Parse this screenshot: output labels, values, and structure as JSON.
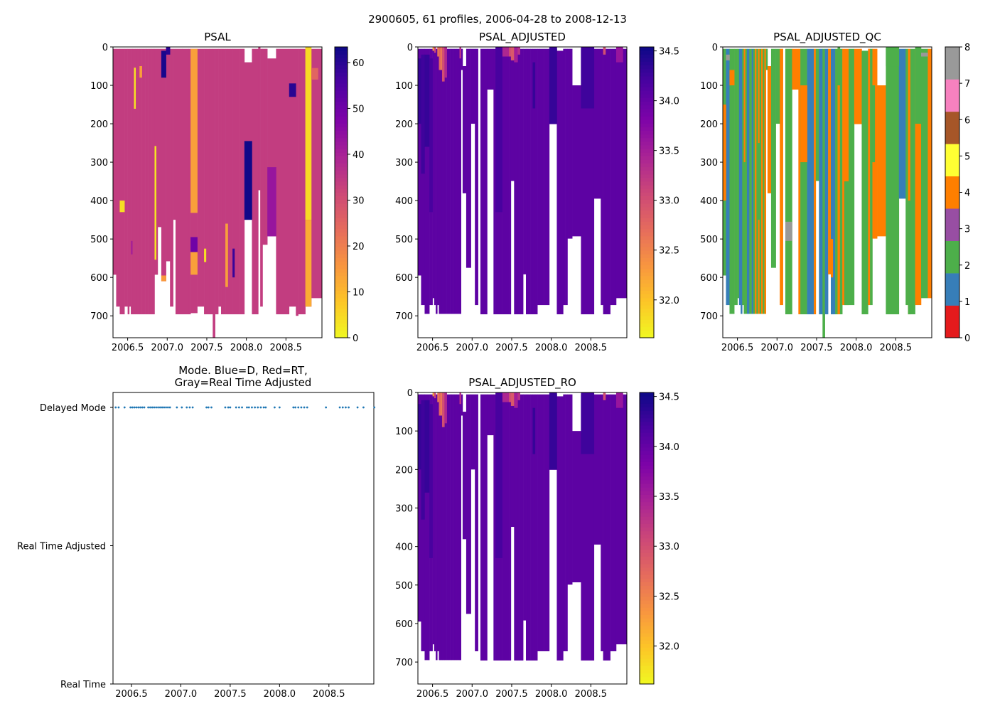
{
  "chart_data": {
    "suptitle": "2900605, 61 profiles, 2006-04-28 to 2008-12-13",
    "profile_dates": [
      2006.34,
      2006.37,
      2006.43,
      2006.49,
      2006.51,
      2006.53,
      2006.55,
      2006.57,
      2006.59,
      2006.61,
      2006.63,
      2006.67,
      2006.69,
      2006.71,
      2006.73,
      2006.75,
      2006.77,
      2006.79,
      2006.81,
      2006.83,
      2006.85,
      2006.87,
      2006.89,
      2006.96,
      2007.01,
      2007.06,
      2007.09,
      2007.12,
      2007.26,
      2007.28,
      2007.31,
      2007.45,
      2007.48,
      2007.5,
      2007.56,
      2007.59,
      2007.62,
      2007.67,
      2007.69,
      2007.72,
      2007.75,
      2007.78,
      2007.81,
      2007.84,
      2007.86,
      2007.95,
      2008.0,
      2008.14,
      2008.16,
      2008.19,
      2008.22,
      2008.25,
      2008.28,
      2008.47,
      2008.61,
      2008.64,
      2008.67,
      2008.7,
      2008.79,
      2008.85,
      2008.96
    ],
    "x_range": [
      2006.315,
      2008.955
    ],
    "x_ticks": [
      2006.5,
      2007.0,
      2007.5,
      2008.0,
      2008.5
    ],
    "x_tick_labels": [
      "2006.5",
      "2007.0",
      "2007.5",
      "2008.0",
      "2008.5"
    ],
    "panels": [
      {
        "id": "psal",
        "type": "heatmap",
        "title": "PSAL",
        "y_range": [
          0,
          757
        ],
        "y_inverted": true,
        "y_ticks": [
          0,
          100,
          200,
          300,
          400,
          500,
          600,
          700
        ],
        "y_tick_labels": [
          "0",
          "100",
          "200",
          "300",
          "400",
          "500",
          "600",
          "700"
        ],
        "colormap": "plasma_r",
        "colorbar": {
          "range": [
            0,
            63.4
          ],
          "ticks": [
            0,
            10,
            20,
            30,
            40,
            50,
            60
          ],
          "tick_labels": [
            "0",
            "10",
            "20",
            "30",
            "40",
            "50",
            "60"
          ]
        },
        "base_value": 34,
        "default_min_pres": 5,
        "min_pres": {
          "46": 40,
          "52": 30,
          "48": 0
        },
        "max_pres": [
          593,
          676,
          696,
          676,
          696,
          676,
          696,
          696,
          696,
          696,
          696,
          696,
          696,
          696,
          696,
          696,
          696,
          696,
          696,
          696,
          593,
          593,
          469,
          610,
          558,
          676,
          450,
          696,
          696,
          696,
          693,
          676,
          696,
          696,
          696,
          757,
          696,
          676,
          696,
          696,
          696,
          696,
          696,
          696,
          696,
          696,
          450,
          696,
          373,
          676,
          515,
          515,
          493,
          696,
          676,
          700,
          696,
          696,
          676,
          654,
          654
        ],
        "patches": [
          [
            30,
            5,
            432,
            14
          ],
          [
            30,
            495,
            534,
            50
          ],
          [
            30,
            534,
            593,
            14
          ],
          [
            23,
            10,
            80,
            62
          ],
          [
            24,
            0,
            20,
            60
          ],
          [
            8,
            54,
            161,
            4
          ],
          [
            20,
            258,
            554,
            3
          ],
          [
            46,
            245,
            450,
            63
          ],
          [
            52,
            313,
            493,
            43
          ],
          [
            58,
            0,
            450,
            5
          ],
          [
            58,
            450,
            676,
            12
          ],
          [
            59,
            55,
            85,
            25
          ],
          [
            54,
            95,
            130,
            60
          ],
          [
            2,
            400,
            430,
            4
          ],
          [
            43,
            525,
            600,
            58
          ],
          [
            32,
            525,
            560,
            4
          ],
          [
            40,
            460,
            625,
            14
          ],
          [
            23,
            595,
            610,
            15
          ],
          [
            11,
            50,
            80,
            14
          ],
          [
            6,
            505,
            540,
            40
          ]
        ]
      },
      {
        "id": "psal_adjusted",
        "type": "heatmap",
        "title": "PSAL_ADJUSTED",
        "y_range": [
          0,
          757
        ],
        "y_inverted": true,
        "y_ticks": [
          0,
          100,
          200,
          300,
          400,
          500,
          600,
          700
        ],
        "y_tick_labels": [
          "0",
          "100",
          "200",
          "300",
          "400",
          "500",
          "600",
          "700"
        ],
        "colormap": "plasma_r",
        "colorbar": {
          "range": [
            31.62,
            34.54
          ],
          "ticks": [
            32.0,
            32.5,
            33.0,
            33.5,
            34.0,
            34.5
          ],
          "tick_labels": [
            "32.0",
            "32.5",
            "33.0",
            "33.5",
            "34.0",
            "34.5"
          ]
        },
        "base_value": 34.05,
        "default_min_pres": 5,
        "min_pres": {
          "22": 50,
          "52": 100,
          "47": 10
        },
        "max_pres": [
          595,
          672,
          695,
          672,
          654,
          672,
          695,
          672,
          695,
          695,
          695,
          695,
          695,
          695,
          695,
          695,
          695,
          695,
          695,
          695,
          695,
          60,
          381,
          575,
          200,
          672,
          null,
          696,
          111,
          696,
          696,
          696,
          696,
          349,
          696,
          696,
          696,
          592,
          696,
          696,
          696,
          696,
          696,
          672,
          672,
          672,
          201,
          696,
          672,
          672,
          499,
          499,
          493,
          696,
          395,
          672,
          696,
          696,
          672,
          654,
          654
        ],
        "patches": [
          [
            4,
            0,
            10,
            32.3
          ],
          [
            5,
            0,
            15,
            33.1
          ],
          [
            7,
            0,
            25,
            32.6
          ],
          [
            8,
            0,
            60,
            32.8
          ],
          [
            9,
            0,
            60,
            32.6
          ],
          [
            10,
            0,
            90,
            33.0
          ],
          [
            11,
            0,
            80,
            33.4
          ],
          [
            20,
            0,
            30,
            33.3
          ],
          [
            31,
            0,
            25,
            33.4
          ],
          [
            32,
            0,
            25,
            33.0
          ],
          [
            33,
            0,
            35,
            32.9
          ],
          [
            34,
            0,
            40,
            33.5
          ],
          [
            35,
            0,
            20,
            33.3
          ],
          [
            56,
            0,
            20,
            33.0
          ],
          [
            59,
            0,
            40,
            33.6
          ],
          [
            0,
            30,
            200,
            34.3
          ],
          [
            1,
            20,
            330,
            34.25
          ],
          [
            2,
            20,
            260,
            34.3
          ],
          [
            3,
            30,
            430,
            34.2
          ],
          [
            30,
            0,
            430,
            34.2
          ],
          [
            46,
            0,
            200,
            34.3
          ],
          [
            41,
            40,
            160,
            34.3
          ],
          [
            53,
            0,
            160,
            34.25
          ]
        ]
      },
      {
        "id": "psal_adjusted_qc",
        "type": "heatmap",
        "title": "PSAL_ADJUSTED_QC",
        "y_range": [
          0,
          757
        ],
        "y_inverted": true,
        "y_ticks": [
          0,
          100,
          200,
          300,
          400,
          500,
          600,
          700
        ],
        "y_tick_labels": [
          "0",
          "100",
          "200",
          "300",
          "400",
          "500",
          "600",
          "700"
        ],
        "colormap": "categorical",
        "category_colors": [
          "#e41a1c",
          "#377eb8",
          "#4daf4a",
          "#984ea3",
          "#ff7f00",
          "#ffff33",
          "#a65628",
          "#f781bf",
          "#999999"
        ],
        "colorbar": {
          "range": [
            0,
            8
          ],
          "ticks": [
            0,
            1,
            2,
            3,
            4,
            5,
            6,
            7,
            8
          ],
          "tick_labels": [
            "0",
            "1",
            "2",
            "3",
            "4",
            "5",
            "6",
            "7",
            "8"
          ]
        },
        "base_values": [
          2,
          1,
          2,
          2,
          2,
          1,
          1,
          2,
          4,
          2,
          1,
          2,
          1,
          2,
          4,
          2,
          4,
          2,
          4,
          2,
          4,
          2,
          4,
          2,
          2,
          4,
          4,
          2,
          4,
          4,
          2,
          1,
          4,
          2,
          1,
          2,
          1,
          4,
          1,
          1,
          2,
          4,
          2,
          4,
          4,
          2,
          4,
          2,
          4,
          2,
          4,
          4,
          4,
          2,
          1,
          2,
          4,
          2,
          4,
          2,
          4
        ],
        "default_min_pres": 5,
        "min_pres": {
          "22": 50,
          "52": 100,
          "47": 10
        },
        "max_pres": [
          595,
          672,
          695,
          672,
          654,
          672,
          695,
          672,
          695,
          695,
          695,
          695,
          695,
          695,
          695,
          695,
          695,
          695,
          695,
          695,
          695,
          60,
          381,
          575,
          200,
          672,
          null,
          696,
          111,
          696,
          696,
          696,
          696,
          349,
          696,
          757,
          696,
          592,
          696,
          696,
          696,
          696,
          696,
          672,
          672,
          672,
          201,
          696,
          672,
          672,
          499,
          499,
          493,
          696,
          395,
          672,
          696,
          696,
          672,
          654,
          654
        ],
        "patches": [
          [
            27,
            455,
            505,
            8
          ],
          [
            0,
            150,
            400,
            4
          ],
          [
            2,
            60,
            100,
            4
          ],
          [
            8,
            300,
            700,
            2
          ],
          [
            16,
            250,
            450,
            2
          ],
          [
            41,
            0,
            100,
            2
          ],
          [
            44,
            350,
            700,
            2
          ],
          [
            50,
            100,
            300,
            2
          ],
          [
            53,
            0,
            50,
            2
          ],
          [
            56,
            400,
            696,
            2
          ],
          [
            58,
            0,
            200,
            2
          ],
          [
            30,
            100,
            300,
            4
          ],
          [
            38,
            500,
            600,
            4
          ],
          [
            1,
            20,
            35,
            8
          ],
          [
            59,
            15,
            25,
            8
          ]
        ]
      },
      {
        "id": "psal_adjusted_ro",
        "type": "heatmap",
        "title": "PSAL_ADJUSTED_RO",
        "same_values_as": "psal_adjusted",
        "y_ticks": [
          0,
          100,
          200,
          300,
          400,
          500,
          600,
          700
        ],
        "y_tick_labels": [
          "0",
          "100",
          "200",
          "300",
          "400",
          "500",
          "600",
          "700"
        ],
        "colorbar": {
          "range": [
            31.62,
            34.54
          ],
          "ticks": [
            32.0,
            32.5,
            33.0,
            33.5,
            34.0,
            34.5
          ],
          "tick_labels": [
            "32.0",
            "32.5",
            "33.0",
            "33.5",
            "34.0",
            "34.5"
          ]
        }
      }
    ],
    "mode_panel": {
      "type": "scatter",
      "title_lines": [
        "Mode. Blue=D, Red=RT,",
        "Gray=Real Time Adjusted"
      ],
      "y_categories": [
        "Real Time",
        "Real Time Adjusted",
        "Delayed Mode"
      ],
      "y_range": [
        0,
        2.108
      ],
      "x_range": [
        2006.313,
        2008.955
      ],
      "point_color": "#1f77b4",
      "mode_values": "all profiles Delayed Mode",
      "y_value": 2
    }
  }
}
